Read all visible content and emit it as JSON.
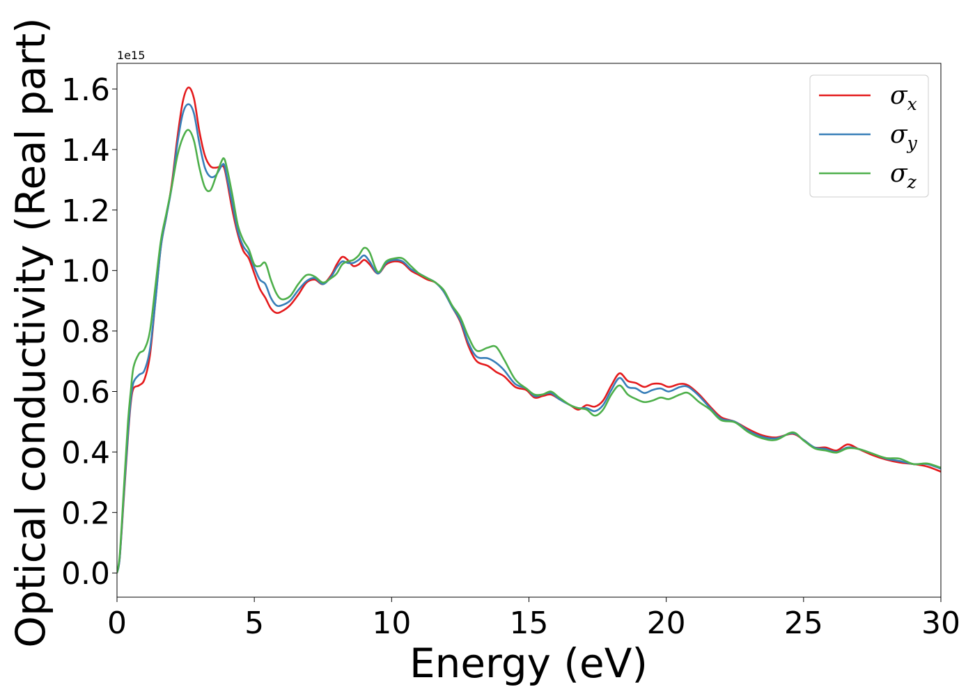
{
  "chart_data": {
    "type": "line",
    "xlabel": "Energy (eV)",
    "ylabel": "Optical conductivity (Real part)",
    "y_offset_label": "1e15",
    "xlim": [
      0,
      30
    ],
    "ylim": [
      -0.08,
      1.685
    ],
    "x_ticks": [
      0,
      5,
      10,
      15,
      20,
      25,
      30
    ],
    "x_tick_labels": [
      "0",
      "5",
      "10",
      "15",
      "20",
      "25",
      "30"
    ],
    "y_ticks": [
      0.0,
      0.2,
      0.4,
      0.6,
      0.8,
      1.0,
      1.2,
      1.4,
      1.6
    ],
    "y_tick_labels": [
      "0.0",
      "0.2",
      "0.4",
      "0.6",
      "0.8",
      "1.0",
      "1.2",
      "1.4",
      "1.6"
    ],
    "grid": false,
    "legend_position": "top-right",
    "series": [
      {
        "name": "σ",
        "subscript": "x",
        "color": "#e41a1c",
        "points": [
          [
            0,
            0
          ],
          [
            0.1,
            0.05
          ],
          [
            0.25,
            0.25
          ],
          [
            0.4,
            0.45
          ],
          [
            0.5,
            0.56
          ],
          [
            0.6,
            0.61
          ],
          [
            0.8,
            0.62
          ],
          [
            1.0,
            0.64
          ],
          [
            1.2,
            0.72
          ],
          [
            1.4,
            0.9
          ],
          [
            1.6,
            1.08
          ],
          [
            1.8,
            1.18
          ],
          [
            2.0,
            1.29
          ],
          [
            2.2,
            1.44
          ],
          [
            2.4,
            1.56
          ],
          [
            2.6,
            1.605
          ],
          [
            2.8,
            1.57
          ],
          [
            3.0,
            1.46
          ],
          [
            3.2,
            1.38
          ],
          [
            3.4,
            1.345
          ],
          [
            3.6,
            1.34
          ],
          [
            3.8,
            1.345
          ],
          [
            3.9,
            1.34
          ],
          [
            4.0,
            1.3
          ],
          [
            4.2,
            1.2
          ],
          [
            4.4,
            1.12
          ],
          [
            4.6,
            1.065
          ],
          [
            4.8,
            1.04
          ],
          [
            5.0,
            0.99
          ],
          [
            5.2,
            0.94
          ],
          [
            5.4,
            0.91
          ],
          [
            5.6,
            0.875
          ],
          [
            5.8,
            0.86
          ],
          [
            6.0,
            0.865
          ],
          [
            6.3,
            0.885
          ],
          [
            6.6,
            0.92
          ],
          [
            6.9,
            0.96
          ],
          [
            7.2,
            0.97
          ],
          [
            7.5,
            0.955
          ],
          [
            7.8,
            0.985
          ],
          [
            8.0,
            1.02
          ],
          [
            8.2,
            1.045
          ],
          [
            8.4,
            1.035
          ],
          [
            8.6,
            1.015
          ],
          [
            8.8,
            1.02
          ],
          [
            9.0,
            1.035
          ],
          [
            9.2,
            1.02
          ],
          [
            9.5,
            0.99
          ],
          [
            9.8,
            1.02
          ],
          [
            10.1,
            1.03
          ],
          [
            10.4,
            1.025
          ],
          [
            10.7,
            1.0
          ],
          [
            11.0,
            0.985
          ],
          [
            11.3,
            0.97
          ],
          [
            11.6,
            0.96
          ],
          [
            11.9,
            0.93
          ],
          [
            12.2,
            0.88
          ],
          [
            12.5,
            0.83
          ],
          [
            12.8,
            0.75
          ],
          [
            13.1,
            0.7
          ],
          [
            13.5,
            0.685
          ],
          [
            13.8,
            0.665
          ],
          [
            14.1,
            0.65
          ],
          [
            14.5,
            0.615
          ],
          [
            14.9,
            0.605
          ],
          [
            15.2,
            0.58
          ],
          [
            15.5,
            0.585
          ],
          [
            15.8,
            0.59
          ],
          [
            16.1,
            0.575
          ],
          [
            16.5,
            0.555
          ],
          [
            16.8,
            0.54
          ],
          [
            17.1,
            0.555
          ],
          [
            17.4,
            0.55
          ],
          [
            17.7,
            0.57
          ],
          [
            18.0,
            0.62
          ],
          [
            18.3,
            0.66
          ],
          [
            18.6,
            0.635
          ],
          [
            18.9,
            0.628
          ],
          [
            19.2,
            0.615
          ],
          [
            19.5,
            0.625
          ],
          [
            19.8,
            0.625
          ],
          [
            20.1,
            0.615
          ],
          [
            20.5,
            0.625
          ],
          [
            20.8,
            0.62
          ],
          [
            21.2,
            0.59
          ],
          [
            21.6,
            0.55
          ],
          [
            22.0,
            0.515
          ],
          [
            22.5,
            0.5
          ],
          [
            23.0,
            0.475
          ],
          [
            23.5,
            0.455
          ],
          [
            24.0,
            0.448
          ],
          [
            24.6,
            0.46
          ],
          [
            25.0,
            0.44
          ],
          [
            25.4,
            0.415
          ],
          [
            25.8,
            0.415
          ],
          [
            26.2,
            0.405
          ],
          [
            26.6,
            0.425
          ],
          [
            27.0,
            0.41
          ],
          [
            27.5,
            0.39
          ],
          [
            28.0,
            0.375
          ],
          [
            28.5,
            0.365
          ],
          [
            29.0,
            0.36
          ],
          [
            29.5,
            0.352
          ],
          [
            30.0,
            0.335
          ]
        ]
      },
      {
        "name": "σ",
        "subscript": "y",
        "color": "#377eb8",
        "points": [
          [
            0,
            0
          ],
          [
            0.1,
            0.05
          ],
          [
            0.25,
            0.26
          ],
          [
            0.4,
            0.46
          ],
          [
            0.5,
            0.57
          ],
          [
            0.6,
            0.63
          ],
          [
            0.8,
            0.655
          ],
          [
            1.0,
            0.67
          ],
          [
            1.2,
            0.74
          ],
          [
            1.4,
            0.9
          ],
          [
            1.6,
            1.08
          ],
          [
            1.8,
            1.18
          ],
          [
            2.0,
            1.28
          ],
          [
            2.2,
            1.42
          ],
          [
            2.4,
            1.52
          ],
          [
            2.6,
            1.55
          ],
          [
            2.8,
            1.52
          ],
          [
            3.0,
            1.42
          ],
          [
            3.2,
            1.34
          ],
          [
            3.4,
            1.31
          ],
          [
            3.6,
            1.315
          ],
          [
            3.8,
            1.345
          ],
          [
            3.9,
            1.35
          ],
          [
            4.0,
            1.31
          ],
          [
            4.2,
            1.22
          ],
          [
            4.4,
            1.13
          ],
          [
            4.6,
            1.08
          ],
          [
            4.8,
            1.055
          ],
          [
            5.0,
            1.01
          ],
          [
            5.2,
            0.97
          ],
          [
            5.4,
            0.955
          ],
          [
            5.6,
            0.91
          ],
          [
            5.8,
            0.885
          ],
          [
            6.0,
            0.885
          ],
          [
            6.3,
            0.9
          ],
          [
            6.6,
            0.935
          ],
          [
            6.9,
            0.965
          ],
          [
            7.2,
            0.975
          ],
          [
            7.5,
            0.955
          ],
          [
            7.8,
            0.98
          ],
          [
            8.0,
            1.01
          ],
          [
            8.2,
            1.03
          ],
          [
            8.4,
            1.025
          ],
          [
            8.6,
            1.025
          ],
          [
            8.8,
            1.035
          ],
          [
            9.0,
            1.05
          ],
          [
            9.2,
            1.03
          ],
          [
            9.5,
            0.99
          ],
          [
            9.8,
            1.025
          ],
          [
            10.1,
            1.035
          ],
          [
            10.4,
            1.03
          ],
          [
            10.7,
            1.005
          ],
          [
            11.0,
            0.99
          ],
          [
            11.3,
            0.975
          ],
          [
            11.6,
            0.96
          ],
          [
            11.9,
            0.93
          ],
          [
            12.2,
            0.88
          ],
          [
            12.5,
            0.835
          ],
          [
            12.8,
            0.76
          ],
          [
            13.1,
            0.715
          ],
          [
            13.5,
            0.71
          ],
          [
            13.8,
            0.695
          ],
          [
            14.1,
            0.67
          ],
          [
            14.5,
            0.625
          ],
          [
            14.9,
            0.61
          ],
          [
            15.2,
            0.585
          ],
          [
            15.5,
            0.59
          ],
          [
            15.8,
            0.595
          ],
          [
            16.1,
            0.575
          ],
          [
            16.5,
            0.555
          ],
          [
            16.8,
            0.545
          ],
          [
            17.1,
            0.545
          ],
          [
            17.4,
            0.535
          ],
          [
            17.7,
            0.555
          ],
          [
            18.0,
            0.605
          ],
          [
            18.3,
            0.645
          ],
          [
            18.6,
            0.615
          ],
          [
            18.9,
            0.61
          ],
          [
            19.2,
            0.595
          ],
          [
            19.5,
            0.605
          ],
          [
            19.8,
            0.61
          ],
          [
            20.1,
            0.6
          ],
          [
            20.5,
            0.615
          ],
          [
            20.8,
            0.615
          ],
          [
            21.2,
            0.585
          ],
          [
            21.6,
            0.545
          ],
          [
            22.0,
            0.51
          ],
          [
            22.5,
            0.5
          ],
          [
            23.0,
            0.47
          ],
          [
            23.5,
            0.45
          ],
          [
            24.0,
            0.445
          ],
          [
            24.6,
            0.462
          ],
          [
            25.0,
            0.44
          ],
          [
            25.4,
            0.415
          ],
          [
            25.8,
            0.41
          ],
          [
            26.2,
            0.4
          ],
          [
            26.6,
            0.415
          ],
          [
            27.0,
            0.41
          ],
          [
            27.5,
            0.395
          ],
          [
            28.0,
            0.378
          ],
          [
            28.5,
            0.37
          ],
          [
            29.0,
            0.36
          ],
          [
            29.5,
            0.36
          ],
          [
            30.0,
            0.345
          ]
        ]
      },
      {
        "name": "σ",
        "subscript": "z",
        "color": "#4daf4a",
        "points": [
          [
            0,
            0
          ],
          [
            0.1,
            0.06
          ],
          [
            0.25,
            0.28
          ],
          [
            0.4,
            0.5
          ],
          [
            0.5,
            0.6
          ],
          [
            0.6,
            0.68
          ],
          [
            0.8,
            0.725
          ],
          [
            1.0,
            0.74
          ],
          [
            1.2,
            0.8
          ],
          [
            1.4,
            0.95
          ],
          [
            1.6,
            1.1
          ],
          [
            1.8,
            1.19
          ],
          [
            2.0,
            1.28
          ],
          [
            2.2,
            1.38
          ],
          [
            2.4,
            1.44
          ],
          [
            2.6,
            1.465
          ],
          [
            2.8,
            1.43
          ],
          [
            3.0,
            1.34
          ],
          [
            3.2,
            1.275
          ],
          [
            3.4,
            1.265
          ],
          [
            3.6,
            1.31
          ],
          [
            3.8,
            1.36
          ],
          [
            3.9,
            1.37
          ],
          [
            4.0,
            1.34
          ],
          [
            4.2,
            1.25
          ],
          [
            4.4,
            1.15
          ],
          [
            4.6,
            1.1
          ],
          [
            4.8,
            1.07
          ],
          [
            5.0,
            1.02
          ],
          [
            5.2,
            1.015
          ],
          [
            5.4,
            1.025
          ],
          [
            5.6,
            0.97
          ],
          [
            5.8,
            0.925
          ],
          [
            6.0,
            0.905
          ],
          [
            6.3,
            0.915
          ],
          [
            6.6,
            0.955
          ],
          [
            6.9,
            0.985
          ],
          [
            7.2,
            0.98
          ],
          [
            7.5,
            0.96
          ],
          [
            7.8,
            0.975
          ],
          [
            8.0,
            0.99
          ],
          [
            8.2,
            1.02
          ],
          [
            8.4,
            1.03
          ],
          [
            8.6,
            1.035
          ],
          [
            8.8,
            1.05
          ],
          [
            9.0,
            1.075
          ],
          [
            9.2,
            1.06
          ],
          [
            9.5,
            0.995
          ],
          [
            9.8,
            1.03
          ],
          [
            10.1,
            1.04
          ],
          [
            10.4,
            1.04
          ],
          [
            10.7,
            1.015
          ],
          [
            11.0,
            0.99
          ],
          [
            11.3,
            0.975
          ],
          [
            11.6,
            0.96
          ],
          [
            11.9,
            0.935
          ],
          [
            12.2,
            0.885
          ],
          [
            12.5,
            0.845
          ],
          [
            12.8,
            0.78
          ],
          [
            13.1,
            0.735
          ],
          [
            13.5,
            0.745
          ],
          [
            13.8,
            0.748
          ],
          [
            14.1,
            0.705
          ],
          [
            14.5,
            0.64
          ],
          [
            14.9,
            0.61
          ],
          [
            15.2,
            0.59
          ],
          [
            15.5,
            0.59
          ],
          [
            15.8,
            0.6
          ],
          [
            16.1,
            0.58
          ],
          [
            16.5,
            0.555
          ],
          [
            16.8,
            0.545
          ],
          [
            17.1,
            0.54
          ],
          [
            17.4,
            0.52
          ],
          [
            17.7,
            0.54
          ],
          [
            18.0,
            0.59
          ],
          [
            18.3,
            0.62
          ],
          [
            18.6,
            0.59
          ],
          [
            18.9,
            0.575
          ],
          [
            19.2,
            0.565
          ],
          [
            19.5,
            0.57
          ],
          [
            19.8,
            0.58
          ],
          [
            20.1,
            0.575
          ],
          [
            20.5,
            0.59
          ],
          [
            20.8,
            0.595
          ],
          [
            21.2,
            0.565
          ],
          [
            21.6,
            0.54
          ],
          [
            22.0,
            0.505
          ],
          [
            22.5,
            0.498
          ],
          [
            23.0,
            0.465
          ],
          [
            23.5,
            0.445
          ],
          [
            24.0,
            0.44
          ],
          [
            24.6,
            0.465
          ],
          [
            25.0,
            0.438
          ],
          [
            25.4,
            0.412
          ],
          [
            25.8,
            0.405
          ],
          [
            26.2,
            0.398
          ],
          [
            26.6,
            0.412
          ],
          [
            27.0,
            0.41
          ],
          [
            27.5,
            0.395
          ],
          [
            28.0,
            0.38
          ],
          [
            28.5,
            0.378
          ],
          [
            29.0,
            0.36
          ],
          [
            29.5,
            0.362
          ],
          [
            30.0,
            0.348
          ]
        ]
      }
    ]
  }
}
